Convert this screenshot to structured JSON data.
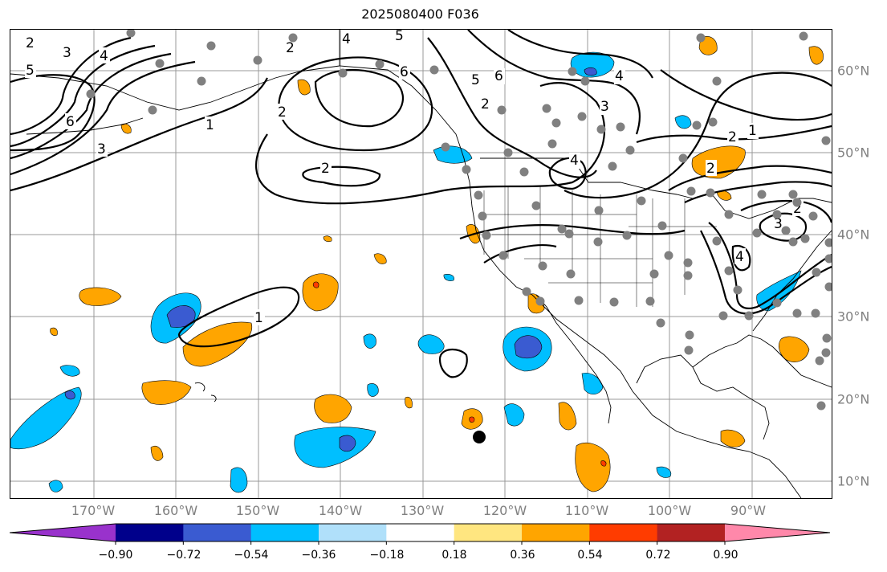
{
  "title": "2025080400 F036",
  "lon_labels": [
    "170°W",
    "160°W",
    "150°W",
    "140°W",
    "130°W",
    "120°W",
    "110°W",
    "100°W",
    "90°W"
  ],
  "lat_labels": [
    "60°N",
    "50°N",
    "40°N",
    "30°N",
    "20°N",
    "10°N"
  ],
  "colorbar": {
    "tick_labels": [
      "−0.90",
      "−0.72",
      "−0.54",
      "−0.36",
      "−0.18",
      "0.18",
      "0.36",
      "0.54",
      "0.72",
      "0.90"
    ],
    "colors": [
      "#9932cc",
      "#00008b",
      "#3a5bd1",
      "#00bfff",
      "#b0e0fa",
      "#ffffff",
      "#ffe680",
      "#ffa500",
      "#ff3c00",
      "#b22222",
      "#ff88aa"
    ]
  },
  "contour_labels": [
    "1",
    "2",
    "3",
    "4",
    "5",
    "6"
  ],
  "colors": {
    "axis_text": "#808080",
    "grid": "#999999",
    "stations": "#808080"
  }
}
